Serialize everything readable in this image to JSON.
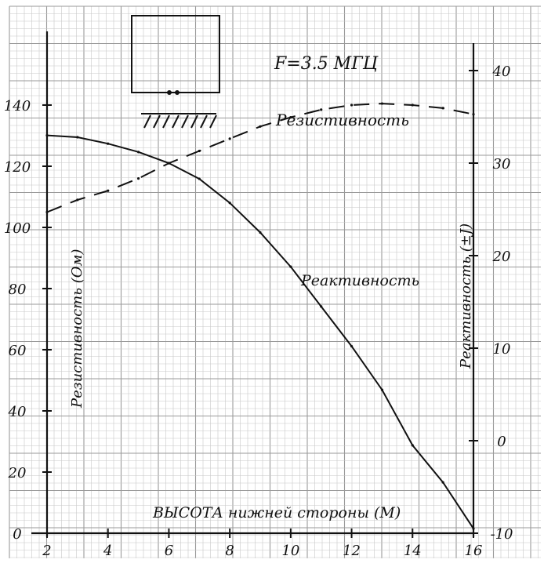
{
  "chart_data": {
    "type": "line",
    "title": "F=3.5 МГЦ",
    "xlabel": "ВЫСОТА нижней стороны (М)",
    "ylabel_left": "Резистивность (Ом)",
    "ylabel_right": "Реактивность (±J)",
    "x_ticks": [
      2,
      4,
      6,
      8,
      10,
      12,
      14,
      16
    ],
    "y_left_ticks": [
      0,
      20,
      40,
      60,
      80,
      100,
      120,
      140
    ],
    "y_right_ticks": [
      -10,
      0,
      10,
      20,
      30,
      40
    ],
    "x_range": [
      2,
      16
    ],
    "y_left_range": [
      0,
      150
    ],
    "y_right_range": [
      -10,
      45
    ],
    "grid": true,
    "series": [
      {
        "name": "Резистивность",
        "axis": "left",
        "style": "dashed",
        "points": [
          {
            "x": 2,
            "y": 105
          },
          {
            "x": 3,
            "y": 109
          },
          {
            "x": 4,
            "y": 112
          },
          {
            "x": 5,
            "y": 116
          },
          {
            "x": 6,
            "y": 121
          },
          {
            "x": 7,
            "y": 125
          },
          {
            "x": 8,
            "y": 129
          },
          {
            "x": 9,
            "y": 133
          },
          {
            "x": 10,
            "y": 136
          },
          {
            "x": 11,
            "y": 138.5
          },
          {
            "x": 12,
            "y": 140
          },
          {
            "x": 13,
            "y": 140.5
          },
          {
            "x": 14,
            "y": 140
          },
          {
            "x": 15,
            "y": 139
          },
          {
            "x": 16,
            "y": 137
          }
        ]
      },
      {
        "name": "Реактивность",
        "axis": "right",
        "style": "solid",
        "points": [
          {
            "x": 2,
            "y": 33
          },
          {
            "x": 3,
            "y": 32.8
          },
          {
            "x": 4,
            "y": 32.1
          },
          {
            "x": 5,
            "y": 31.2
          },
          {
            "x": 6,
            "y": 30
          },
          {
            "x": 7,
            "y": 28.3
          },
          {
            "x": 8,
            "y": 25.7
          },
          {
            "x": 9,
            "y": 22.5
          },
          {
            "x": 10,
            "y": 18.8
          },
          {
            "x": 11,
            "y": 14.5
          },
          {
            "x": 12,
            "y": 10.2
          },
          {
            "x": 13,
            "y": 5.5
          },
          {
            "x": 14,
            "y": -0.5
          },
          {
            "x": 15,
            "y": -4.5
          },
          {
            "x": 16,
            "y": -9.5
          }
        ]
      }
    ],
    "colors": {
      "grid_minor": "#c8c8c8",
      "grid_major": "#9a9a9a",
      "ink": "#111111"
    }
  }
}
